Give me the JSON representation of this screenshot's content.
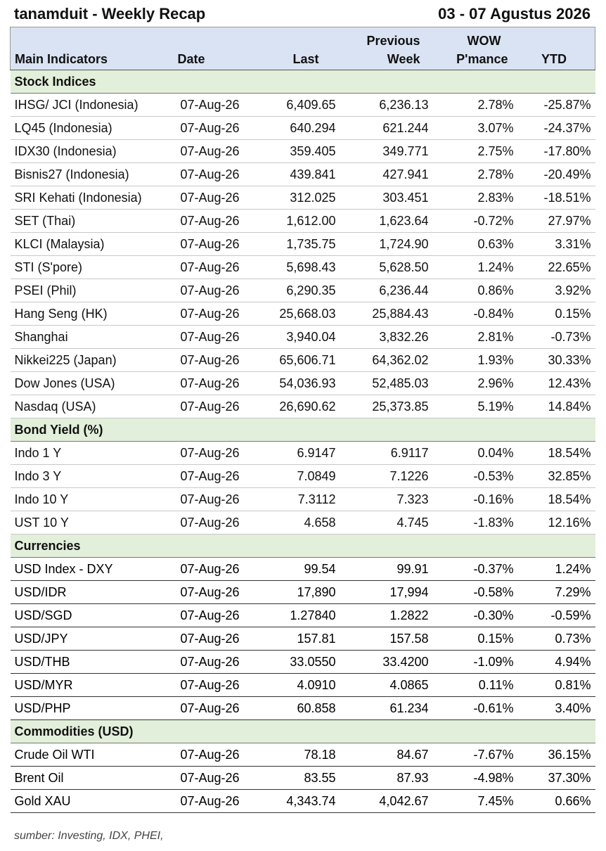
{
  "header": {
    "title": "tanamduit - Weekly Recap",
    "period": "03 - 07 Agustus 2026"
  },
  "columns": {
    "row1": [
      "",
      "",
      "",
      "Previous",
      "WOW",
      ""
    ],
    "row2": [
      "Main Indicators",
      "Date",
      "Last",
      "Week",
      "P'mance",
      "YTD"
    ]
  },
  "sections": [
    {
      "title": "Stock Indices",
      "style": "normal",
      "rows": [
        [
          "IHSG/ JCI (Indonesia)",
          "07-Aug-26",
          "6,409.65",
          "6,236.13",
          "2.78%",
          "-25.87%"
        ],
        [
          "LQ45 (Indonesia)",
          "07-Aug-26",
          "640.294",
          "621.244",
          "3.07%",
          "-24.37%"
        ],
        [
          "IDX30 (Indonesia)",
          "07-Aug-26",
          "359.405",
          "349.771",
          "2.75%",
          "-17.80%"
        ],
        [
          "Bisnis27 (Indonesia)",
          "07-Aug-26",
          "439.841",
          "427.941",
          "2.78%",
          "-20.49%"
        ],
        [
          "SRI Kehati (Indonesia)",
          "07-Aug-26",
          "312.025",
          "303.451",
          "2.83%",
          "-18.51%"
        ],
        [
          "SET (Thai)",
          "07-Aug-26",
          "1,612.00",
          "1,623.64",
          "-0.72%",
          "27.97%"
        ],
        [
          "KLCI (Malaysia)",
          "07-Aug-26",
          "1,735.75",
          "1,724.90",
          "0.63%",
          "3.31%"
        ],
        [
          "STI (S'pore)",
          "07-Aug-26",
          "5,698.43",
          "5,628.50",
          "1.24%",
          "22.65%"
        ],
        [
          "PSEI (Phil)",
          "07-Aug-26",
          "6,290.35",
          "6,236.44",
          "0.86%",
          "3.92%"
        ],
        [
          "Hang Seng (HK)",
          "07-Aug-26",
          "25,668.03",
          "25,884.43",
          "-0.84%",
          "0.15%"
        ],
        [
          "Shanghai",
          "07-Aug-26",
          "3,940.04",
          "3,832.26",
          "2.81%",
          "-0.73%"
        ],
        [
          "Nikkei225 (Japan)",
          "07-Aug-26",
          "65,606.71",
          "64,362.02",
          "1.93%",
          "30.33%"
        ],
        [
          "Dow Jones (USA)",
          "07-Aug-26",
          "54,036.93",
          "52,485.03",
          "2.96%",
          "12.43%"
        ],
        [
          "Nasdaq (USA)",
          "07-Aug-26",
          "26,690.62",
          "25,373.85",
          "5.19%",
          "14.84%"
        ]
      ]
    },
    {
      "title": "Bond Yield (%)",
      "style": "normal",
      "rows": [
        [
          "Indo 1 Y",
          "07-Aug-26",
          "6.9147",
          "6.9117",
          "0.04%",
          "18.54%"
        ],
        [
          "Indo 3 Y",
          "07-Aug-26",
          "7.0849",
          "7.1226",
          "-0.53%",
          "32.85%"
        ],
        [
          "Indo 10 Y",
          "07-Aug-26",
          "7.3112",
          "7.323",
          "-0.16%",
          "18.54%"
        ],
        [
          "UST 10 Y",
          "07-Aug-26",
          "4.658",
          "4.745",
          "-1.83%",
          "12.16%"
        ]
      ]
    },
    {
      "title": "Currencies",
      "style": "strong",
      "rows": [
        [
          "USD Index - DXY",
          "07-Aug-26",
          "99.54",
          "99.91",
          "-0.37%",
          "1.24%"
        ],
        [
          "USD/IDR",
          "07-Aug-26",
          "17,890",
          "17,994",
          "-0.58%",
          "7.29%"
        ],
        [
          "USD/SGD",
          "07-Aug-26",
          "1.27840",
          "1.2822",
          "-0.30%",
          "-0.59%"
        ],
        [
          "USD/JPY",
          "07-Aug-26",
          "157.81",
          "157.58",
          "0.15%",
          "0.73%"
        ],
        [
          "USD/THB",
          "07-Aug-26",
          "33.0550",
          "33.4200",
          "-1.09%",
          "4.94%"
        ],
        [
          "USD/MYR",
          "07-Aug-26",
          "4.0910",
          "4.0865",
          "0.11%",
          "0.81%"
        ],
        [
          "USD/PHP",
          "07-Aug-26",
          "60.858",
          "61.234",
          "-0.61%",
          "3.40%"
        ]
      ]
    },
    {
      "title": "Commodities (USD)",
      "style": "strong",
      "rows": [
        [
          "Crude Oil WTI",
          "07-Aug-26",
          "78.18",
          "84.67",
          "-7.67%",
          "36.15%"
        ],
        [
          "Brent Oil",
          "07-Aug-26",
          "83.55",
          "87.93",
          "-4.98%",
          "37.30%"
        ],
        [
          "Gold XAU",
          "07-Aug-26",
          "4,343.74",
          "4,042.67",
          "7.45%",
          "0.66%"
        ]
      ]
    }
  ],
  "footer": {
    "source": "sumber: Investing, IDX, PHEI,"
  }
}
